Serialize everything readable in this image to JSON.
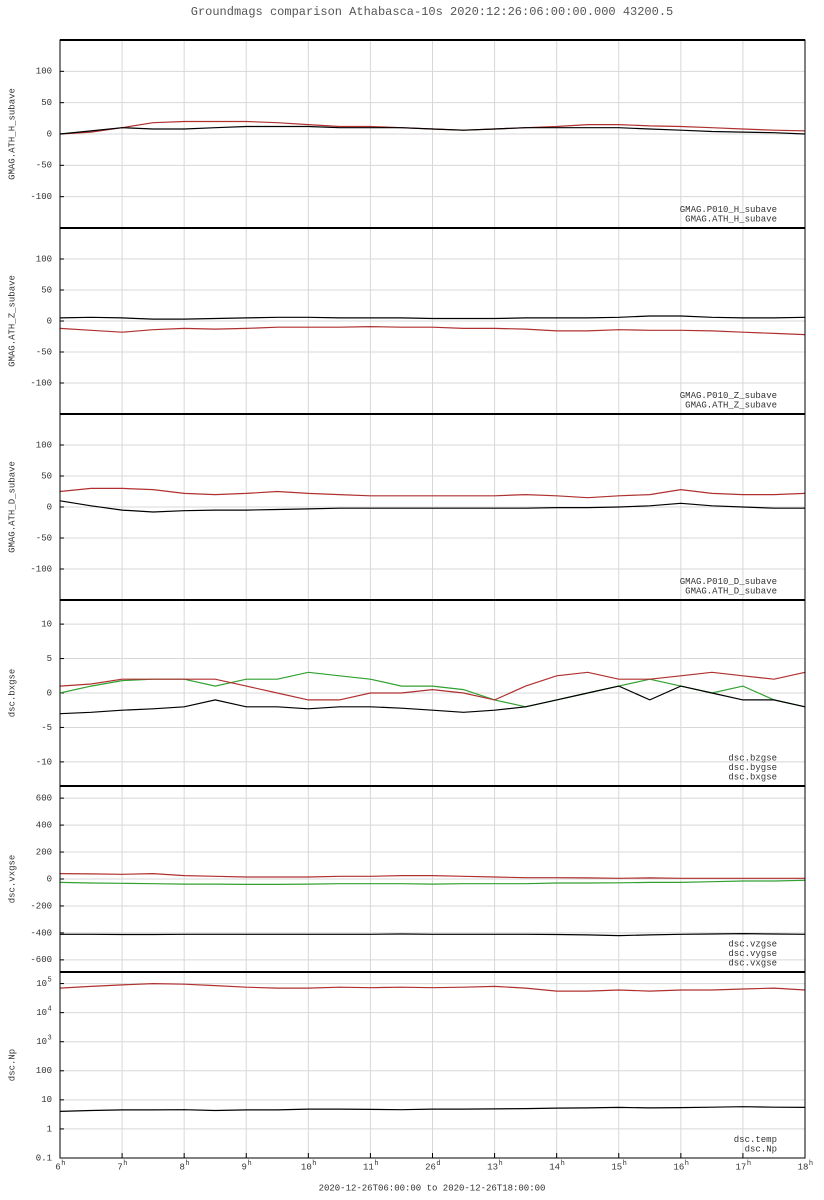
{
  "title": "Groundmags comparison Athabasca-10s 2020:12:26:06:00:00.000 43200.5",
  "footer": "2020-12-26T06:00:00 to 2020-12-26T18:00:00",
  "chart_data": [
    {
      "type": "line",
      "ylabel": "GMAG.ATH_H_subave",
      "xlim": [
        6,
        18
      ],
      "ylim": [
        -150,
        150
      ],
      "yticks": [
        100,
        50,
        0,
        -50,
        -100
      ],
      "grid": true,
      "x": [
        6,
        6.5,
        7,
        7.5,
        8,
        8.5,
        9,
        9.5,
        10,
        10.5,
        11,
        11.5,
        12,
        12.5,
        13,
        13.5,
        14,
        14.5,
        15,
        15.5,
        16,
        16.5,
        17,
        17.5,
        18
      ],
      "series": [
        {
          "name": "GMAG.P010_H_subave",
          "color": "#b03030",
          "values": [
            0,
            3,
            10,
            18,
            20,
            20,
            20,
            18,
            15,
            12,
            12,
            10,
            8,
            6,
            8,
            10,
            12,
            15,
            15,
            13,
            12,
            10,
            8,
            6,
            5
          ]
        },
        {
          "name": "GMAG.ATH_H_subave",
          "color": "#000000",
          "values": [
            0,
            5,
            10,
            8,
            8,
            10,
            12,
            12,
            12,
            10,
            10,
            10,
            8,
            6,
            8,
            10,
            10,
            10,
            10,
            8,
            6,
            4,
            3,
            2,
            0
          ]
        }
      ]
    },
    {
      "type": "line",
      "ylabel": "GMAG.ATH_Z_subave",
      "xlim": [
        6,
        18
      ],
      "ylim": [
        -150,
        150
      ],
      "yticks": [
        100,
        50,
        0,
        -50,
        -100
      ],
      "grid": true,
      "x": [
        6,
        6.5,
        7,
        7.5,
        8,
        8.5,
        9,
        9.5,
        10,
        10.5,
        11,
        11.5,
        12,
        12.5,
        13,
        13.5,
        14,
        14.5,
        15,
        15.5,
        16,
        16.5,
        17,
        17.5,
        18
      ],
      "series": [
        {
          "name": "GMAG.P010_Z_subave",
          "color": "#b03030",
          "values": [
            -12,
            -15,
            -18,
            -14,
            -12,
            -13,
            -12,
            -10,
            -10,
            -10,
            -9,
            -10,
            -10,
            -12,
            -12,
            -13,
            -16,
            -16,
            -14,
            -15,
            -15,
            -16,
            -18,
            -20,
            -22
          ]
        },
        {
          "name": "GMAG.ATH_Z_subave",
          "color": "#000000",
          "values": [
            5,
            6,
            5,
            3,
            3,
            4,
            5,
            6,
            6,
            5,
            5,
            5,
            4,
            4,
            4,
            5,
            5,
            5,
            6,
            8,
            8,
            6,
            5,
            5,
            6
          ]
        }
      ]
    },
    {
      "type": "line",
      "ylabel": "GMAG.ATH_D_subave",
      "xlim": [
        6,
        18
      ],
      "ylim": [
        -150,
        150
      ],
      "yticks": [
        100,
        50,
        0,
        -50,
        -100
      ],
      "grid": true,
      "x": [
        6,
        6.5,
        7,
        7.5,
        8,
        8.5,
        9,
        9.5,
        10,
        10.5,
        11,
        11.5,
        12,
        12.5,
        13,
        13.5,
        14,
        14.5,
        15,
        15.5,
        16,
        16.5,
        17,
        17.5,
        18
      ],
      "series": [
        {
          "name": "GMAG.P010_D_subave",
          "color": "#b03030",
          "values": [
            25,
            30,
            30,
            28,
            22,
            20,
            22,
            25,
            22,
            20,
            18,
            18,
            18,
            18,
            18,
            20,
            18,
            15,
            18,
            20,
            28,
            22,
            20,
            20,
            22
          ]
        },
        {
          "name": "GMAG.ATH_D_subave",
          "color": "#000000",
          "values": [
            10,
            2,
            -5,
            -8,
            -6,
            -5,
            -5,
            -4,
            -3,
            -2,
            -2,
            -2,
            -2,
            -2,
            -2,
            -2,
            -1,
            -1,
            0,
            2,
            6,
            2,
            0,
            -2,
            -2
          ]
        }
      ]
    },
    {
      "type": "line",
      "ylabel": "dsc.bxgse",
      "xlim": [
        6,
        18
      ],
      "ylim": [
        -13.5,
        13.5
      ],
      "yticks": [
        10,
        5,
        0,
        -5,
        -10
      ],
      "grid": true,
      "x": [
        6,
        6.5,
        7,
        7.5,
        8,
        8.5,
        9,
        9.5,
        10,
        10.5,
        11,
        11.5,
        12,
        12.5,
        13,
        13.5,
        14,
        14.5,
        15,
        15.5,
        16,
        16.5,
        17,
        17.5,
        18
      ],
      "series": [
        {
          "name": "dsc.bzgse",
          "color": "#30a030",
          "values": [
            0,
            1,
            1.8,
            2,
            2,
            1,
            2,
            2,
            3,
            2.5,
            2,
            1,
            1,
            0.5,
            -1,
            -2,
            -1,
            0,
            1,
            2,
            1,
            0,
            1,
            -1,
            -2
          ]
        },
        {
          "name": "dsc.bygse",
          "color": "#b03030",
          "values": [
            1,
            1.3,
            2,
            2,
            2,
            2,
            1,
            0,
            -1,
            -1,
            0,
            0,
            0.5,
            0,
            -1,
            1,
            2.5,
            3,
            2,
            2,
            2.5,
            3,
            2.5,
            2,
            3
          ]
        },
        {
          "name": "dsc.bxgse",
          "color": "#000000",
          "values": [
            -3,
            -2.8,
            -2.5,
            -2.3,
            -2,
            -1,
            -2,
            -2,
            -2.3,
            -2,
            -2,
            -2.2,
            -2.5,
            -2.8,
            -2.5,
            -2,
            -1,
            0,
            1,
            -1,
            1,
            0,
            -1,
            -1,
            -2
          ]
        }
      ]
    },
    {
      "type": "line",
      "ylabel": "dsc.vxgse",
      "xlim": [
        6,
        18
      ],
      "ylim": [
        -690,
        690
      ],
      "yticks": [
        600,
        400,
        200,
        0,
        -200,
        -400,
        -600
      ],
      "grid": true,
      "x": [
        6,
        6.5,
        7,
        7.5,
        8,
        8.5,
        9,
        9.5,
        10,
        10.5,
        11,
        11.5,
        12,
        12.5,
        13,
        13.5,
        14,
        14.5,
        15,
        15.5,
        16,
        16.5,
        17,
        17.5,
        18
      ],
      "series": [
        {
          "name": "dsc.vzgse",
          "color": "#30a030",
          "values": [
            -25,
            -30,
            -32,
            -35,
            -38,
            -38,
            -40,
            -40,
            -38,
            -35,
            -35,
            -35,
            -38,
            -35,
            -35,
            -35,
            -30,
            -30,
            -28,
            -25,
            -25,
            -20,
            -15,
            -15,
            -10
          ]
        },
        {
          "name": "dsc.vygse",
          "color": "#b03030",
          "values": [
            40,
            38,
            35,
            40,
            25,
            20,
            15,
            15,
            15,
            20,
            20,
            25,
            25,
            20,
            15,
            10,
            10,
            8,
            5,
            8,
            5,
            5,
            5,
            5,
            5
          ]
        },
        {
          "name": "dsc.vxgse",
          "color": "#000000",
          "values": [
            -410,
            -410,
            -412,
            -412,
            -410,
            -410,
            -410,
            -410,
            -410,
            -410,
            -410,
            -408,
            -410,
            -410,
            -410,
            -410,
            -412,
            -415,
            -420,
            -415,
            -410,
            -408,
            -405,
            -408,
            -410
          ]
        }
      ]
    },
    {
      "type": "line",
      "ylabel": "dsc.Np",
      "log": true,
      "xlim": [
        6,
        18
      ],
      "ylim": [
        0.1,
        250000
      ],
      "grid": true,
      "yticks": [
        {
          "value": 100000,
          "label": "10",
          "sup": "5"
        },
        {
          "value": 10000,
          "label": "10",
          "sup": "4"
        },
        {
          "value": 1000,
          "label": "10",
          "sup": "3"
        },
        100,
        10,
        1,
        0.1
      ],
      "xticks": [
        {
          "value": 6,
          "label": "6",
          "sup": "h"
        },
        {
          "value": 7,
          "label": "7",
          "sup": "h"
        },
        {
          "value": 8,
          "label": "8",
          "sup": "h"
        },
        {
          "value": 9,
          "label": "9",
          "sup": "h"
        },
        {
          "value": 10,
          "label": "10",
          "sup": "h"
        },
        {
          "value": 11,
          "label": "11",
          "sup": "h"
        },
        {
          "value": 12,
          "label": "26",
          "sup": "d"
        },
        {
          "value": 13,
          "label": "13",
          "sup": "h"
        },
        {
          "value": 14,
          "label": "14",
          "sup": "h"
        },
        {
          "value": 15,
          "label": "15",
          "sup": "h"
        },
        {
          "value": 16,
          "label": "16",
          "sup": "h"
        },
        {
          "value": 17,
          "label": "17",
          "sup": "h"
        },
        {
          "value": 18,
          "label": "18",
          "sup": "h"
        }
      ],
      "x": [
        6,
        6.5,
        7,
        7.5,
        8,
        8.5,
        9,
        9.5,
        10,
        10.5,
        11,
        11.5,
        12,
        12.5,
        13,
        13.5,
        14,
        14.5,
        15,
        15.5,
        16,
        16.5,
        17,
        17.5,
        18
      ],
      "series": [
        {
          "name": "dsc.temp",
          "color": "#b03030",
          "values": [
            70000,
            80000,
            90000,
            100000,
            95000,
            85000,
            75000,
            70000,
            70000,
            75000,
            72000,
            75000,
            72000,
            75000,
            80000,
            70000,
            55000,
            55000,
            60000,
            55000,
            60000,
            60000,
            65000,
            70000,
            60000
          ]
        },
        {
          "name": "dsc.Np",
          "color": "#000000",
          "values": [
            4,
            4.3,
            4.5,
            4.5,
            4.6,
            4.3,
            4.5,
            4.5,
            4.8,
            4.8,
            4.7,
            4.6,
            4.8,
            4.8,
            4.9,
            5,
            5.2,
            5.3,
            5.5,
            5.3,
            5.4,
            5.6,
            5.8,
            5.6,
            5.5
          ]
        }
      ]
    }
  ]
}
